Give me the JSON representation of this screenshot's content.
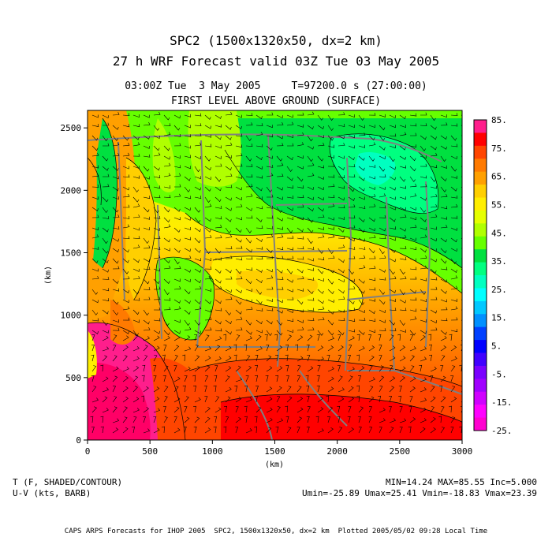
{
  "header": {
    "title_line1": "SPC2 (1500x1320x50, dx=2 km)",
    "title_line2": "27 h WRF Forecast valid 03Z Tue 03 May 2005",
    "time_line": "03:00Z Tue  3 May 2005     T=97200.0 s (27:00:00)",
    "level_line": "FIRST LEVEL ABOVE GROUND (SURFACE)"
  },
  "axes": {
    "x": {
      "label": "(km)",
      "ticks": [
        "0",
        "500",
        "1000",
        "1500",
        "2000",
        "2500",
        "3000"
      ],
      "range": [
        0,
        3000
      ]
    },
    "y": {
      "label": "(km)",
      "ticks": [
        "0",
        "500",
        "1000",
        "1500",
        "2000",
        "2500"
      ],
      "range": [
        0,
        2640
      ]
    }
  },
  "colorbar": {
    "labels": [
      "85.",
      "75.",
      "65.",
      "55.",
      "45.",
      "35.",
      "25.",
      "15.",
      "5.",
      "-5.",
      "-15.",
      "-25."
    ],
    "colors": [
      "#ff1e8c",
      "#ff0000",
      "#ff4500",
      "#ff7a00",
      "#ffa000",
      "#ffcf00",
      "#ffee00",
      "#e6ff00",
      "#b0ff00",
      "#66ff00",
      "#00e040",
      "#00ff80",
      "#00ffc0",
      "#00ffff",
      "#00c8ff",
      "#0090ff",
      "#0040ff",
      "#0000ff",
      "#4000ff",
      "#7a00ff",
      "#a000ff",
      "#d000ff",
      "#ff00ff",
      "#ff00d0"
    ]
  },
  "footer": {
    "left_line1": "T (F, SHADED/CONTOUR)",
    "left_line2": "U-V (kts, BARB)",
    "right_line1": "MIN=14.24 MAX=85.55 Inc=5.000",
    "right_line2": "Umin=-25.89 Umax=25.41 Vmin=-18.83 Vmax=23.39",
    "credit": "CAPS ARPS Forecasts for IHOP 2005  SPC2, 1500x1320x50, dx=2 km  Plotted 2005/05/02 09:28 Local Time"
  }
}
